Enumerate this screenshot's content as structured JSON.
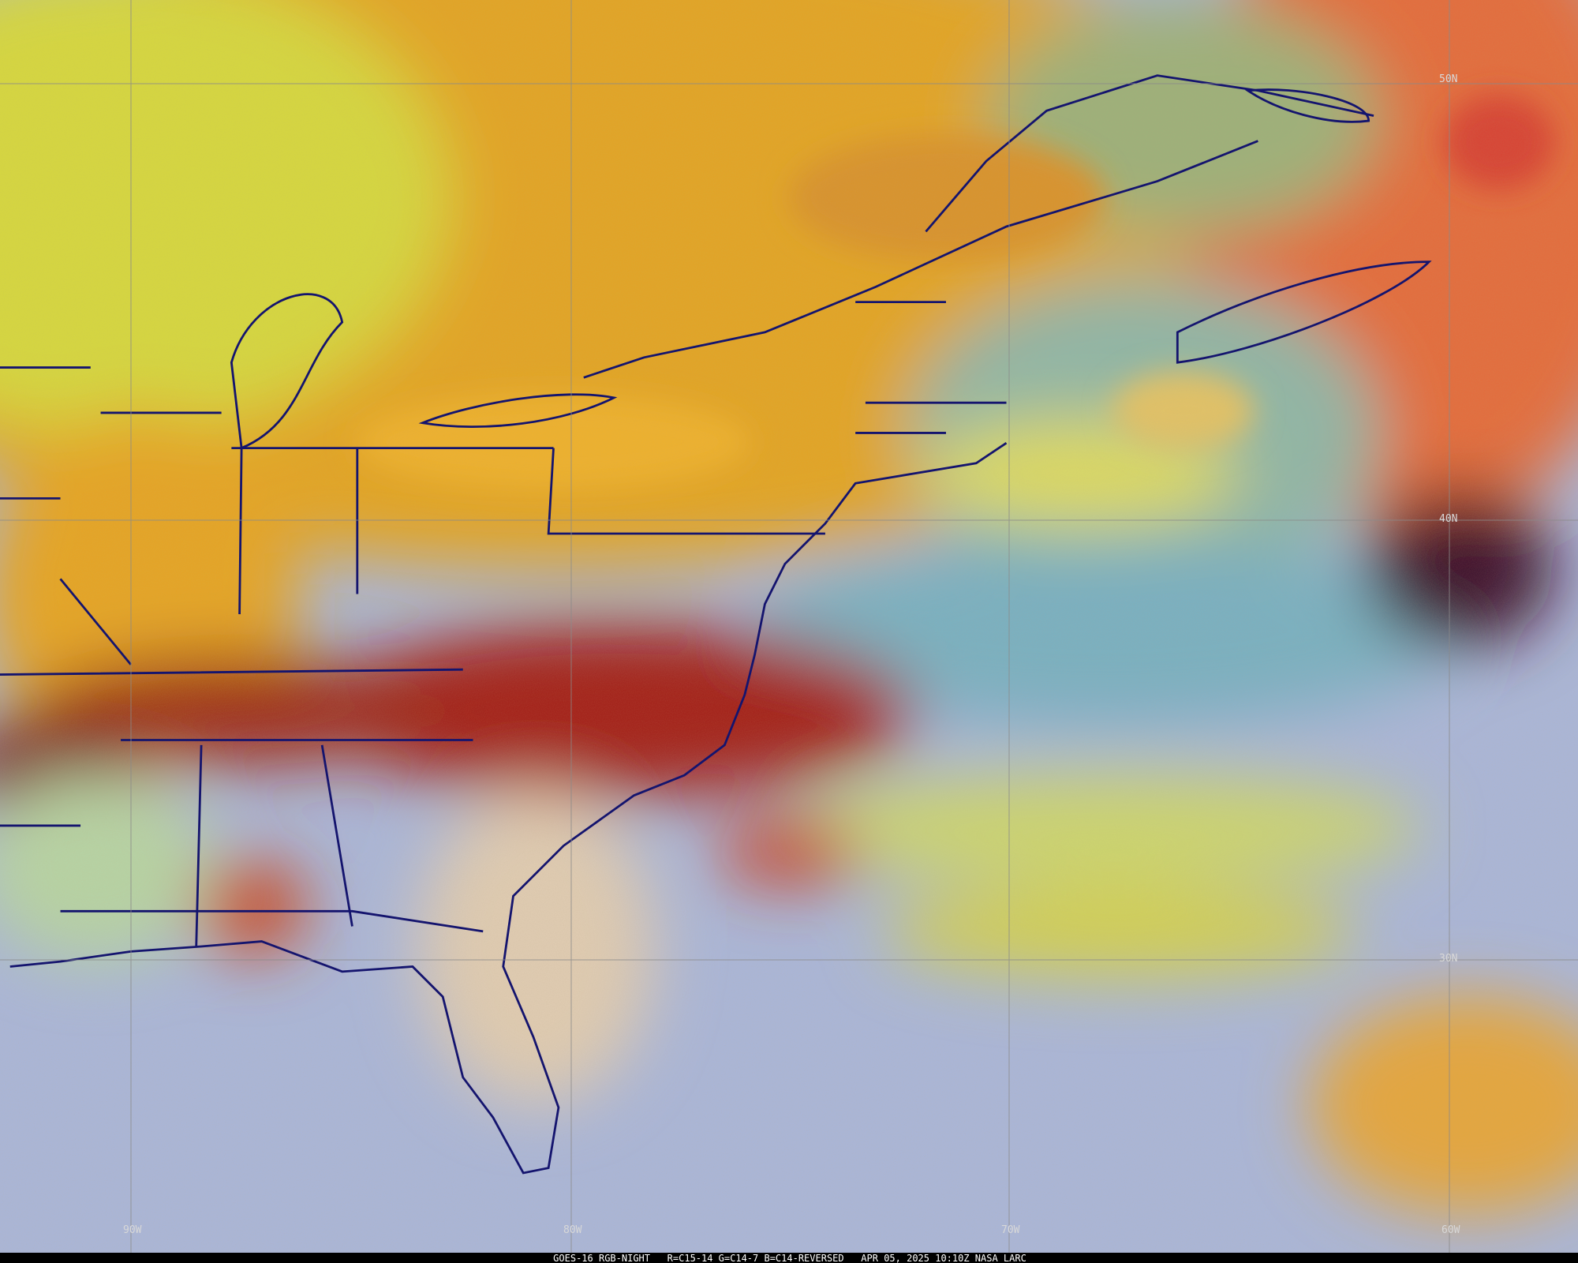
{
  "longitude_labels": [
    "90W",
    "80W",
    "70W",
    "60W"
  ],
  "latitude_labels": [
    "50N",
    "40N",
    "30N"
  ],
  "footer": "GOES-16 RGB-NIGHT   R=C15-14 G=C14-7 B=C14-REVERSED   APR 05, 2025 10:10Z NASA LARC"
}
